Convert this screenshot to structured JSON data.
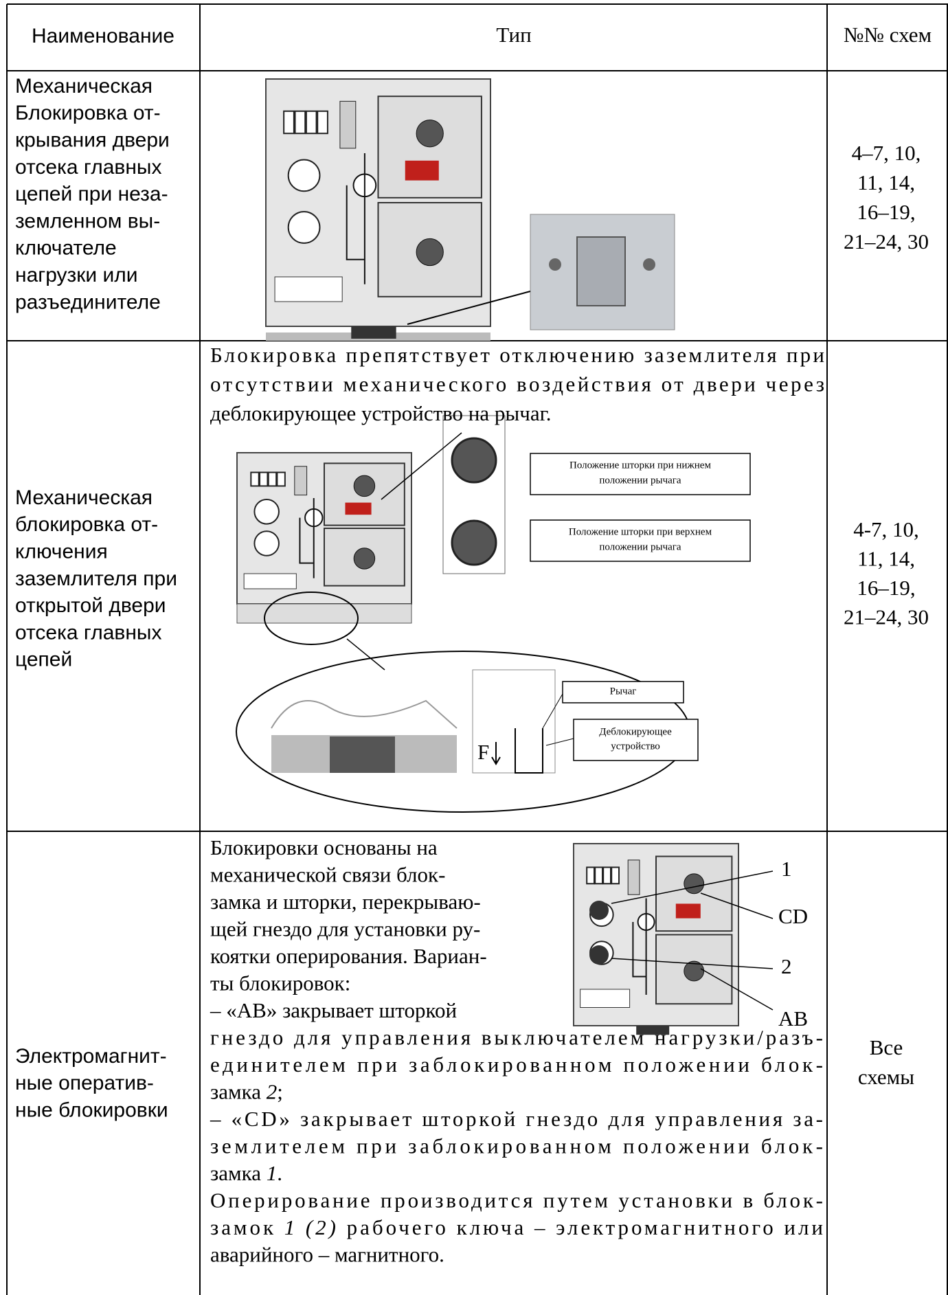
{
  "table": {
    "header": [
      "Наименование",
      "Тип",
      "№№ схем"
    ],
    "rows": [
      {
        "name": [
          "Механическая",
          "Блокировка от-",
          "крывания двери",
          "отсека главных",
          "цепей при неза-",
          "земленном вы-",
          "ключателе",
          "нагрузки или",
          "разъединителе"
        ],
        "schemes": [
          "4–7, 10,",
          "11, 14,",
          "16–19,",
          "21–24, 30"
        ]
      },
      {
        "name": [
          "Механическая",
          "блокировка от-",
          "ключения",
          "заземлителя при",
          "открытой двери",
          "отсека главных",
          "цепей"
        ],
        "text": [
          "Блокировка препятствует отключению заземлителя при",
          "отсутствии механического воздействия от двери через",
          "деблокирующее устройство на рычаг."
        ],
        "figure": {
          "lower": [
            "Положение шторки при нижнем",
            "положении рычага"
          ],
          "upper": [
            "Положение шторки при верхнем",
            "положении рычага"
          ],
          "lever": "Рычаг",
          "release": [
            "Деблокирующее",
            "устройство"
          ],
          "force": "F"
        },
        "schemes": [
          "4-7, 10,",
          "11, 14,",
          "16–19,",
          "21–24, 30"
        ]
      },
      {
        "name": [
          "Электромагнит-",
          "ные оператив-",
          "ные блокировки"
        ],
        "text": [
          "Блокировки основаны на",
          "механической связи блок-",
          "замка и шторки, перекрываю-",
          "щей гнездо для установки ру-",
          "коятки оперирования. Вариан-",
          "ты блокировок:",
          "– «АВ» закрывает шторкой",
          "гнездо для управления выключателем нагрузки/разъ-",
          "единителем при заблокированном положении блок-",
          [
            "замка ",
            {
              "text": "2",
              "italic": true
            },
            ";"
          ],
          "– «CD» закрывает шторкой гнездо для управления за-",
          "землителем при заблокированном положении блок-",
          [
            "замка ",
            {
              "text": "1",
              "italic": true
            },
            "."
          ],
          "Оперирование производится путем установки в блок-",
          [
            "замок ",
            {
              "text": "1 (2)",
              "italic": true
            },
            " рабочего ключа – электромагнитного или"
          ],
          "аварийного – магнитного."
        ],
        "callouts": [
          "1",
          "CD",
          "2",
          "AB"
        ],
        "schemes": [
          "Все",
          "схемы"
        ]
      }
    ]
  }
}
